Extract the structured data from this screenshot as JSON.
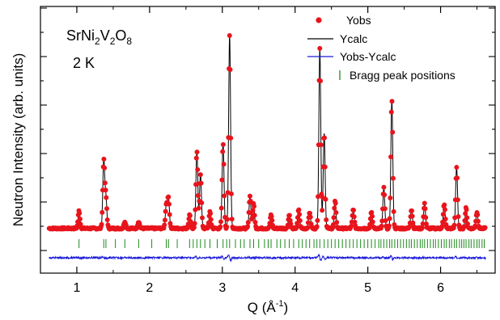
{
  "chart_data": {
    "type": "line",
    "ylabel": "Neutron Intensity (arb. units)",
    "xlabel_main": "Q (Å",
    "xlabel_sup": "-1",
    "xlabel_end": ")",
    "xlim": [
      0.5,
      6.75
    ],
    "x_ticks": [
      1,
      2,
      3,
      4,
      5,
      6
    ],
    "x_tick_labels": [
      "1",
      "2",
      "3",
      "4",
      "5",
      "6"
    ],
    "y_ticks_shown": "unlabeled",
    "annotations": {
      "formula": {
        "parts": [
          {
            "t": "SrNi",
            "sub": false
          },
          {
            "t": "2",
            "sub": true
          },
          {
            "t": "V",
            "sub": false
          },
          {
            "t": "2",
            "sub": true
          },
          {
            "t": "O",
            "sub": false
          },
          {
            "t": "8",
            "sub": true
          }
        ]
      },
      "temperature": "2 K"
    },
    "legend": {
      "placement": "top-right",
      "entries": [
        {
          "label": "Yobs",
          "style": "red-dots"
        },
        {
          "label": "Ycalc",
          "style": "black-line"
        },
        {
          "label": "Yobs-Ycalc",
          "style": "blue-line"
        },
        {
          "label": "Bragg peak positions",
          "style": "green-ticks"
        }
      ]
    },
    "colors": {
      "obs": "#e8141c",
      "calc": "#000000",
      "diff": "#1a1ad8",
      "bragg": "#1f8a1f"
    },
    "background_level": 0.02,
    "peaks": [
      {
        "q": 1.03,
        "height": 0.13
      },
      {
        "q": 1.37,
        "height": 0.5
      },
      {
        "q": 1.4,
        "height": 0.22
      },
      {
        "q": 1.66,
        "height": 0.05
      },
      {
        "q": 1.85,
        "height": 0.05
      },
      {
        "q": 2.23,
        "height": 0.17
      },
      {
        "q": 2.26,
        "height": 0.22
      },
      {
        "q": 2.55,
        "height": 0.1
      },
      {
        "q": 2.65,
        "height": 0.57
      },
      {
        "q": 2.7,
        "height": 0.4
      },
      {
        "q": 2.83,
        "height": 0.12
      },
      {
        "q": 3.01,
        "height": 0.63
      },
      {
        "q": 3.1,
        "height": 1.42
      },
      {
        "q": 3.38,
        "height": 0.24
      },
      {
        "q": 3.43,
        "height": 0.18
      },
      {
        "q": 3.67,
        "height": 0.1
      },
      {
        "q": 3.92,
        "height": 0.1
      },
      {
        "q": 4.05,
        "height": 0.14
      },
      {
        "q": 4.2,
        "height": 0.12
      },
      {
        "q": 4.34,
        "height": 1.32
      },
      {
        "q": 4.4,
        "height": 0.7
      },
      {
        "q": 4.55,
        "height": 0.2
      },
      {
        "q": 4.8,
        "height": 0.14
      },
      {
        "q": 5.05,
        "height": 0.12
      },
      {
        "q": 5.22,
        "height": 0.3
      },
      {
        "q": 5.33,
        "height": 0.95
      },
      {
        "q": 5.6,
        "height": 0.14
      },
      {
        "q": 5.78,
        "height": 0.18
      },
      {
        "q": 6.05,
        "height": 0.18
      },
      {
        "q": 6.22,
        "height": 0.45
      },
      {
        "q": 6.35,
        "height": 0.15
      },
      {
        "q": 6.5,
        "height": 0.12
      }
    ],
    "bragg_positions": [
      1.03,
      1.37,
      1.4,
      1.53,
      1.66,
      1.85,
      2.03,
      2.23,
      2.26,
      2.38,
      2.55,
      2.6,
      2.65,
      2.7,
      2.76,
      2.83,
      2.93,
      3.01,
      3.06,
      3.1,
      3.18,
      3.25,
      3.3,
      3.38,
      3.43,
      3.5,
      3.58,
      3.63,
      3.67,
      3.75,
      3.8,
      3.86,
      3.92,
      3.98,
      4.05,
      4.1,
      4.15,
      4.2,
      4.26,
      4.3,
      4.34,
      4.4,
      4.45,
      4.5,
      4.55,
      4.6,
      4.65,
      4.7,
      4.75,
      4.8,
      4.85,
      4.9,
      4.95,
      5.0,
      5.05,
      5.1,
      5.15,
      5.18,
      5.22,
      5.26,
      5.3,
      5.33,
      5.37,
      5.41,
      5.45,
      5.49,
      5.53,
      5.57,
      5.6,
      5.64,
      5.68,
      5.72,
      5.75,
      5.78,
      5.82,
      5.86,
      5.9,
      5.93,
      5.97,
      6.01,
      6.05,
      6.08,
      6.12,
      6.15,
      6.19,
      6.22,
      6.26,
      6.29,
      6.32,
      6.35,
      6.39,
      6.42,
      6.46,
      6.5,
      6.53,
      6.57,
      6.6
    ]
  }
}
